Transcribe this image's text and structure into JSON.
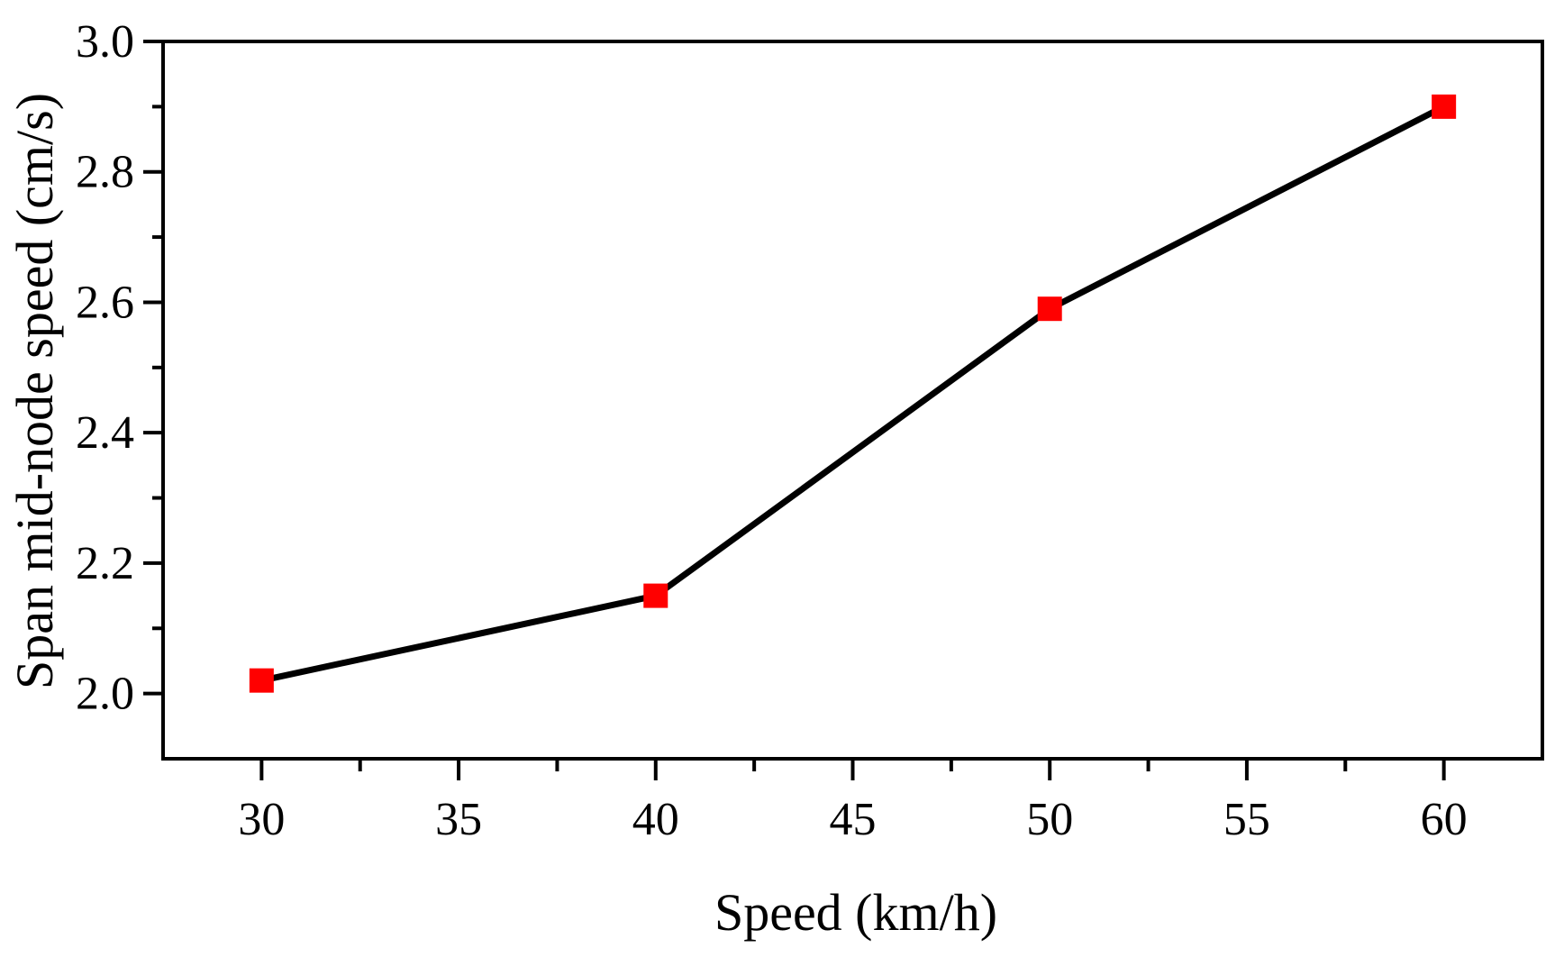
{
  "chart_data": {
    "type": "line",
    "title": "",
    "xlabel": "Speed (km/h)",
    "ylabel": "Span mid-node speed (cm/s)",
    "xlim": [
      27.5,
      62.5
    ],
    "ylim": [
      1.9,
      3.0
    ],
    "x_ticks": [
      30,
      35,
      40,
      45,
      50,
      55,
      60
    ],
    "x_tick_labels": [
      "30",
      "35",
      "40",
      "45",
      "50",
      "55",
      "60"
    ],
    "y_ticks": [
      2.0,
      2.2,
      2.4,
      2.6,
      2.8,
      3.0
    ],
    "y_tick_labels": [
      "2.0",
      "2.2",
      "2.4",
      "2.6",
      "2.8",
      "3.0"
    ],
    "grid": false,
    "legend": "none",
    "series": [
      {
        "x": [
          30,
          40,
          50,
          60
        ],
        "values": [
          2.02,
          2.15,
          2.59,
          2.9
        ],
        "line_color": "#000000",
        "marker": "square",
        "marker_color": "#ff0000"
      }
    ]
  }
}
